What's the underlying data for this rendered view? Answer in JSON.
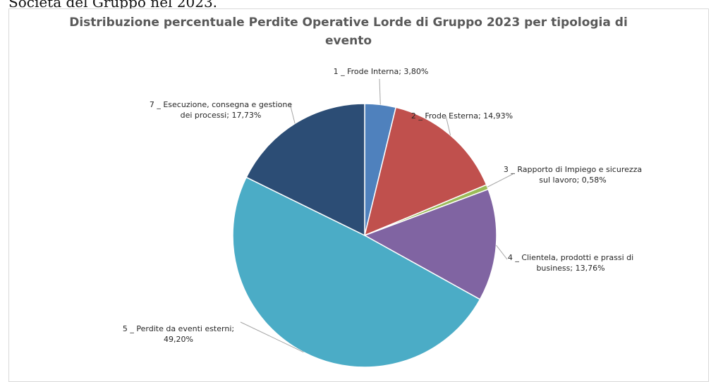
{
  "page": {
    "top_text": "Società del Gruppo nel 2023."
  },
  "chart_data": {
    "type": "pie",
    "title_lines": [
      "Distribuzione percentuale Perdite Operative Lorde di Gruppo 2023 per tipologia di",
      "evento"
    ],
    "categories": [
      "1 _ Frode Interna",
      "2 _ Frode Esterna",
      "3 _ Rapporto di Impiego e sicurezza sul lavoro",
      "4 _ Clientela, prodotti e prassi di business",
      "5 _ Perdite da eventi esterni",
      "7 _ Esecuzione, consegna e gestione dei processi"
    ],
    "values": [
      3.8,
      14.93,
      0.58,
      13.76,
      49.2,
      17.73
    ],
    "unit": "%",
    "colors": [
      "#4F81BD",
      "#C0504D",
      "#9BBB59",
      "#8064A2",
      "#4BACC6",
      "#2C4D75"
    ],
    "data_labels": [
      [
        "1 _ Frode Interna; 3,80%"
      ],
      [
        "2 _ Frode Esterna; 14,93%"
      ],
      [
        "3 _ Rapporto di Impiego e sicurezza",
        "sul lavoro; 0,58%"
      ],
      [
        "4 _ Clientela, prodotti e prassi di",
        "business; 13,76%"
      ],
      [
        "5 _ Perdite da eventi esterni;",
        "49,20%"
      ],
      [
        "7 _ Esecuzione, consegna e gestione",
        "dei processi; 17,73%"
      ]
    ],
    "legend": "none"
  }
}
